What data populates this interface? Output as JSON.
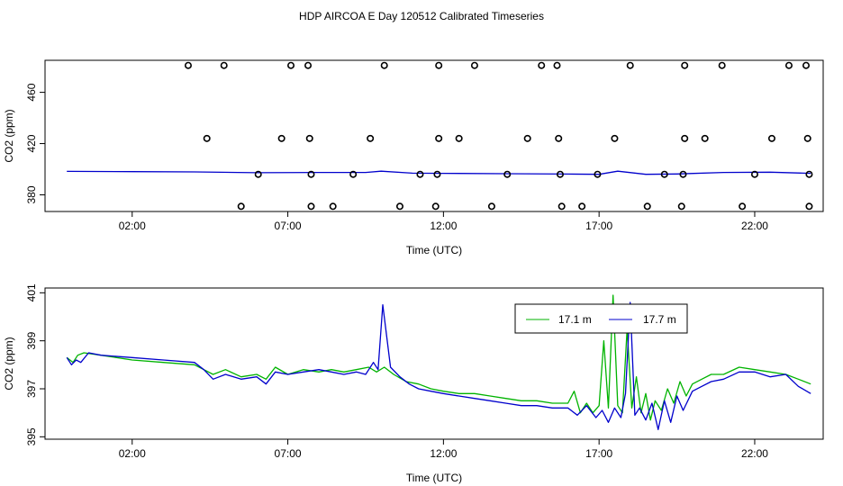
{
  "title": "HDP AIRCOA E  Day 120512  Calibrated Timeseries",
  "colors": {
    "green": "#00b300",
    "blue": "#0000cc",
    "black": "#000000"
  },
  "chart_data": [
    {
      "type": "scatter+line",
      "xlabel": "Time (UTC)",
      "ylabel": "CO2 (ppm)",
      "xlim": [
        -0.8,
        24.2
      ],
      "ylim": [
        367,
        485
      ],
      "xticks": [
        2,
        7,
        12,
        17,
        22
      ],
      "xtick_labels": [
        "02:00",
        "07:00",
        "12:00",
        "17:00",
        "22:00"
      ],
      "yticks": [
        380,
        420,
        460
      ],
      "ytick_labels": [
        "380",
        "420",
        "460"
      ],
      "grid": false,
      "points": [
        {
          "x": 3.8,
          "y": 481
        },
        {
          "x": 4.95,
          "y": 481
        },
        {
          "x": 7.1,
          "y": 481
        },
        {
          "x": 7.65,
          "y": 481
        },
        {
          "x": 10.1,
          "y": 481
        },
        {
          "x": 11.85,
          "y": 481
        },
        {
          "x": 13.0,
          "y": 481
        },
        {
          "x": 15.15,
          "y": 481
        },
        {
          "x": 15.65,
          "y": 481
        },
        {
          "x": 18.0,
          "y": 481
        },
        {
          "x": 19.75,
          "y": 481
        },
        {
          "x": 20.95,
          "y": 481
        },
        {
          "x": 23.1,
          "y": 481
        },
        {
          "x": 23.65,
          "y": 481
        },
        {
          "x": 4.4,
          "y": 424
        },
        {
          "x": 6.8,
          "y": 424
        },
        {
          "x": 7.7,
          "y": 424
        },
        {
          "x": 9.65,
          "y": 424
        },
        {
          "x": 11.85,
          "y": 424
        },
        {
          "x": 12.5,
          "y": 424
        },
        {
          "x": 14.7,
          "y": 424
        },
        {
          "x": 15.7,
          "y": 424
        },
        {
          "x": 17.5,
          "y": 424
        },
        {
          "x": 19.75,
          "y": 424
        },
        {
          "x": 20.4,
          "y": 424
        },
        {
          "x": 22.55,
          "y": 424
        },
        {
          "x": 23.7,
          "y": 424
        },
        {
          "x": 6.05,
          "y": 396
        },
        {
          "x": 7.75,
          "y": 396
        },
        {
          "x": 9.1,
          "y": 396
        },
        {
          "x": 11.25,
          "y": 396
        },
        {
          "x": 11.8,
          "y": 396
        },
        {
          "x": 14.05,
          "y": 396
        },
        {
          "x": 15.75,
          "y": 396
        },
        {
          "x": 16.95,
          "y": 396
        },
        {
          "x": 19.1,
          "y": 396
        },
        {
          "x": 19.7,
          "y": 396
        },
        {
          "x": 22.0,
          "y": 396
        },
        {
          "x": 23.75,
          "y": 396
        },
        {
          "x": 5.5,
          "y": 371
        },
        {
          "x": 7.75,
          "y": 371
        },
        {
          "x": 8.45,
          "y": 371
        },
        {
          "x": 10.6,
          "y": 371
        },
        {
          "x": 11.75,
          "y": 371
        },
        {
          "x": 13.55,
          "y": 371
        },
        {
          "x": 15.8,
          "y": 371
        },
        {
          "x": 16.45,
          "y": 371
        },
        {
          "x": 18.55,
          "y": 371
        },
        {
          "x": 19.65,
          "y": 371
        },
        {
          "x": 21.6,
          "y": 371
        },
        {
          "x": 23.75,
          "y": 371
        }
      ],
      "series": [
        {
          "x": [
            -0.1,
            2.0,
            4.0,
            6.0,
            8.0,
            9.5,
            10.0,
            11.0,
            12.0,
            14.0,
            16.0,
            17.0,
            17.6,
            18.5,
            19.5,
            21.0,
            22.5,
            23.8
          ],
          "y": [
            398.3,
            398.1,
            397.9,
            397.3,
            397.5,
            397.5,
            398.5,
            396.9,
            396.8,
            396.5,
            396.2,
            396.0,
            398.5,
            396.0,
            396.3,
            397.5,
            397.7,
            396.8
          ]
        }
      ]
    },
    {
      "type": "line",
      "xlabel": "Time (UTC)",
      "ylabel": "CO2 (ppm)",
      "xlim": [
        -0.8,
        24.2
      ],
      "ylim": [
        394.9,
        401.2
      ],
      "xticks": [
        2,
        7,
        12,
        17,
        22
      ],
      "xtick_labels": [
        "02:00",
        "07:00",
        "12:00",
        "17:00",
        "22:00"
      ],
      "yticks": [
        395,
        397,
        399,
        401
      ],
      "ytick_labels": [
        "395",
        "397",
        "399",
        "401"
      ],
      "grid": false,
      "legend": "top-right",
      "series": [
        {
          "name": "17.1 m",
          "color": "#00b300",
          "x": [
            -0.1,
            0.1,
            0.25,
            0.45,
            1.0,
            2.0,
            3.0,
            4.0,
            4.3,
            4.6,
            5.0,
            5.5,
            6.0,
            6.3,
            6.6,
            7.0,
            7.5,
            8.0,
            8.4,
            8.8,
            9.2,
            9.6,
            9.85,
            10.1,
            10.4,
            10.8,
            11.2,
            11.6,
            12.0,
            12.5,
            13.0,
            13.5,
            14.0,
            14.5,
            15.0,
            15.5,
            16.0,
            16.2,
            16.4,
            16.6,
            16.8,
            17.0,
            17.15,
            17.3,
            17.45,
            17.6,
            17.75,
            17.9,
            18.05,
            18.2,
            18.35,
            18.5,
            18.65,
            18.8,
            19.0,
            19.2,
            19.4,
            19.6,
            19.8,
            20.0,
            20.3,
            20.6,
            21.0,
            21.5,
            22.0,
            22.5,
            23.0,
            23.4,
            23.8
          ],
          "y": [
            398.3,
            398.1,
            398.4,
            398.5,
            398.4,
            398.2,
            398.1,
            398.0,
            397.8,
            397.6,
            397.8,
            397.5,
            397.6,
            397.4,
            397.9,
            397.6,
            397.8,
            397.7,
            397.8,
            397.7,
            397.8,
            397.9,
            397.7,
            397.9,
            397.6,
            397.3,
            397.2,
            397.0,
            396.9,
            396.8,
            396.8,
            396.7,
            396.6,
            396.5,
            396.5,
            396.4,
            396.4,
            396.9,
            396.0,
            396.4,
            396.0,
            396.3,
            399.0,
            396.2,
            400.9,
            396.3,
            396.0,
            399.5,
            396.2,
            397.5,
            396.0,
            396.8,
            395.7,
            396.5,
            396.1,
            397.0,
            396.4,
            397.3,
            396.7,
            397.2,
            397.4,
            397.6,
            397.6,
            397.9,
            397.8,
            397.7,
            397.6,
            397.4,
            397.2
          ]
        },
        {
          "name": "17.7 m",
          "color": "#0000cc",
          "x": [
            -0.1,
            0.05,
            0.2,
            0.35,
            0.6,
            1.0,
            2.0,
            3.0,
            4.0,
            4.3,
            4.6,
            5.0,
            5.5,
            6.0,
            6.3,
            6.6,
            7.0,
            7.5,
            8.0,
            8.4,
            8.8,
            9.2,
            9.5,
            9.75,
            9.9,
            10.05,
            10.3,
            10.6,
            10.9,
            11.2,
            11.6,
            12.0,
            12.5,
            13.0,
            13.5,
            14.0,
            14.5,
            15.0,
            15.5,
            16.0,
            16.3,
            16.6,
            16.9,
            17.1,
            17.3,
            17.5,
            17.7,
            17.85,
            18.0,
            18.15,
            18.3,
            18.5,
            18.7,
            18.9,
            19.1,
            19.3,
            19.5,
            19.7,
            20.0,
            20.3,
            20.6,
            21.0,
            21.5,
            22.0,
            22.5,
            23.0,
            23.4,
            23.8
          ],
          "y": [
            398.3,
            398.0,
            398.2,
            398.1,
            398.5,
            398.4,
            398.3,
            398.2,
            398.1,
            397.8,
            397.4,
            397.6,
            397.4,
            397.5,
            397.2,
            397.7,
            397.6,
            397.7,
            397.8,
            397.7,
            397.6,
            397.7,
            397.6,
            398.1,
            397.8,
            400.5,
            397.9,
            397.5,
            397.2,
            397.0,
            396.9,
            396.8,
            396.7,
            396.6,
            396.5,
            396.4,
            396.3,
            396.3,
            396.2,
            396.2,
            395.9,
            396.3,
            395.8,
            396.1,
            395.6,
            396.2,
            395.8,
            396.8,
            400.6,
            395.9,
            396.2,
            395.7,
            396.4,
            395.3,
            396.5,
            395.6,
            396.7,
            396.1,
            396.9,
            397.1,
            397.3,
            397.4,
            397.7,
            397.7,
            397.5,
            397.6,
            397.1,
            396.8
          ]
        }
      ]
    }
  ]
}
